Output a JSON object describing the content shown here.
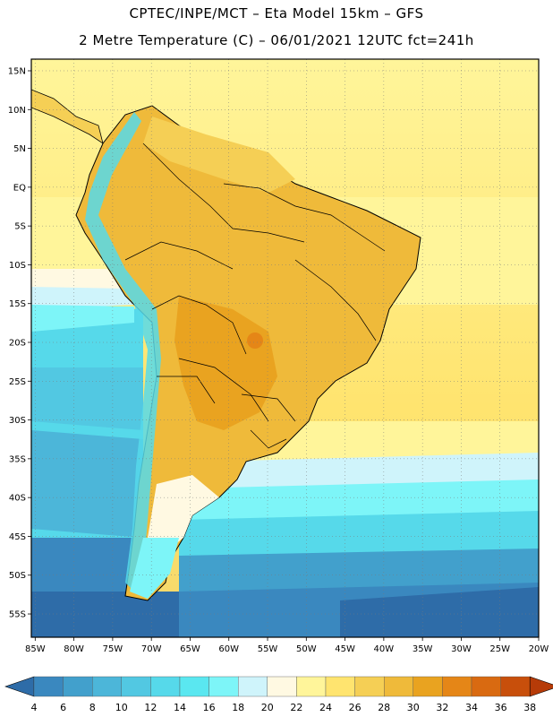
{
  "header": {
    "line1": "CPTEC/INPE/MCT –  Eta Model 15km – GFS",
    "line2": "2 Metre Temperature (C) – 06/01/2021 12UTC fct=241h"
  },
  "axes": {
    "lat_labels": [
      "15N",
      "10N",
      "5N",
      "EQ",
      "5S",
      "10S",
      "15S",
      "20S",
      "25S",
      "30S",
      "35S",
      "40S",
      "45S",
      "50S",
      "55S"
    ],
    "lon_labels": [
      "85W",
      "80W",
      "75W",
      "70W",
      "65W",
      "60W",
      "55W",
      "50W",
      "45W",
      "40W",
      "35W",
      "30W",
      "25W",
      "20W"
    ],
    "lat_range": [
      16.5,
      -58
    ],
    "lon_range": [
      -85.5,
      -20
    ]
  },
  "colorbar": {
    "labels": [
      "4",
      "6",
      "8",
      "10",
      "12",
      "14",
      "16",
      "18",
      "20",
      "22",
      "24",
      "26",
      "28",
      "30",
      "32",
      "34",
      "36",
      "38"
    ],
    "colors": [
      "#2e6ca8",
      "#3a88bf",
      "#42a0cc",
      "#4cb6d9",
      "#52c8e2",
      "#56d9ea",
      "#5ae7f0",
      "#7df5f8",
      "#cff4fb",
      "#fff9e2",
      "#fff59a",
      "#ffe46f",
      "#f5cf55",
      "#efba3a",
      "#e9a320",
      "#e58617",
      "#d96a11",
      "#c84f0b",
      "#b63b08"
    ]
  },
  "legend_note": "",
  "icons": {
    "left_arrow": "triangle-left-icon",
    "right_arrow": "triangle-right-icon"
  }
}
